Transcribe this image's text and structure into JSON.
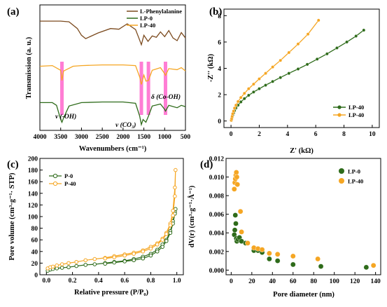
{
  "figure": {
    "panels": [
      "(a)",
      "(b)",
      "(c)",
      "(d)"
    ],
    "colors": {
      "brown": "#7b4a1e",
      "orange": "#f5a623",
      "green": "#2e6b1a",
      "pink": "#ff66cc"
    }
  },
  "chart_data": [
    {
      "panel": "(a)",
      "type": "line",
      "xlabel": "Wavenumbers (cm⁻¹)",
      "ylabel": "Transmission (a. u.)",
      "xlim": [
        4000,
        500
      ],
      "xticks": [
        "4000",
        "3500",
        "3000",
        "2500",
        "2000",
        "1500",
        "1000",
        "500"
      ],
      "legend": [
        "L-Phenylalanine",
        "LP-0",
        "LP-40"
      ],
      "annotations": [
        "ν (-OH)",
        "ν (CO₃)",
        "δ (Co-OH)"
      ],
      "highlight_bands": [
        3470,
        1560,
        1390,
        980
      ],
      "series": [
        {
          "name": "L-Phenylalanine",
          "color": "#7b4a1e",
          "offset": 2.0,
          "x": [
            4000,
            3500,
            3300,
            3100,
            3000,
            2900,
            2600,
            2300,
            2100,
            1900,
            1700,
            1620,
            1560,
            1500,
            1400,
            1300,
            1200,
            1100,
            1000,
            900,
            800,
            700,
            600,
            500
          ],
          "y": [
            0.8,
            0.8,
            0.78,
            0.58,
            0.38,
            0.28,
            0.45,
            0.58,
            0.56,
            0.72,
            0.55,
            0.3,
            0.1,
            0.38,
            0.2,
            0.36,
            0.32,
            0.48,
            0.34,
            0.52,
            0.3,
            0.22,
            0.46,
            0.3
          ]
        },
        {
          "name": "LP-40",
          "color": "#f5a623",
          "offset": 1.0,
          "x": [
            4000,
            3700,
            3500,
            3470,
            3430,
            3200,
            3000,
            2500,
            2000,
            1700,
            1600,
            1560,
            1500,
            1450,
            1390,
            1300,
            1100,
            1000,
            980,
            900,
            700,
            600,
            500
          ],
          "y": [
            0.62,
            0.64,
            0.5,
            0.2,
            0.48,
            0.62,
            0.64,
            0.66,
            0.66,
            0.64,
            0.3,
            0.08,
            0.36,
            0.18,
            0.2,
            0.5,
            0.58,
            0.4,
            0.35,
            0.55,
            0.52,
            0.58,
            0.48
          ]
        },
        {
          "name": "LP-0",
          "color": "#2e6b1a",
          "offset": 0.0,
          "x": [
            4000,
            3700,
            3600,
            3500,
            3470,
            3430,
            3300,
            3000,
            2500,
            2000,
            1700,
            1600,
            1560,
            1520,
            1450,
            1390,
            1300,
            1100,
            1000,
            980,
            900,
            700,
            600,
            500
          ],
          "y": [
            0.7,
            0.7,
            0.62,
            0.2,
            0.12,
            0.25,
            0.6,
            0.7,
            0.72,
            0.72,
            0.68,
            0.3,
            0.05,
            0.2,
            0.12,
            0.3,
            0.6,
            0.66,
            0.5,
            0.45,
            0.62,
            0.55,
            0.62,
            0.58
          ]
        }
      ]
    },
    {
      "panel": "(b)",
      "type": "line",
      "xlabel": "Z' (kΩ)",
      "ylabel": "-Z'' (kΩ)",
      "xlim": [
        -0.5,
        10.5
      ],
      "ylim": [
        -0.5,
        8.5
      ],
      "xticks": [
        0,
        2,
        4,
        6,
        8,
        10
      ],
      "yticks": [
        0,
        2,
        4,
        6,
        8
      ],
      "series": [
        {
          "name": "LP-40",
          "color": "#2e6b1a",
          "x": [
            0.02,
            0.05,
            0.08,
            0.12,
            0.18,
            0.25,
            0.35,
            0.5,
            0.7,
            0.95,
            1.25,
            1.6,
            2.0,
            2.45,
            2.95,
            3.5,
            4.1,
            4.75,
            5.4,
            6.1,
            6.8,
            7.5,
            8.2,
            8.85,
            9.4
          ],
          "y": [
            0.05,
            0.15,
            0.3,
            0.45,
            0.6,
            0.78,
            0.98,
            1.2,
            1.45,
            1.7,
            1.95,
            2.2,
            2.45,
            2.72,
            3.0,
            3.3,
            3.62,
            3.95,
            4.3,
            4.7,
            5.1,
            5.55,
            6.0,
            6.45,
            6.9
          ]
        },
        {
          "name": "LP-40",
          "color": "#f5a623",
          "x": [
            0.02,
            0.05,
            0.08,
            0.12,
            0.18,
            0.25,
            0.35,
            0.5,
            0.7,
            0.95,
            1.25,
            1.6,
            2.0,
            2.45,
            2.95,
            3.5,
            4.1,
            4.75,
            5.45,
            6.2
          ],
          "y": [
            0.05,
            0.18,
            0.35,
            0.55,
            0.75,
            0.98,
            1.2,
            1.48,
            1.78,
            2.1,
            2.45,
            2.8,
            3.2,
            3.62,
            4.1,
            4.6,
            5.2,
            5.85,
            6.6,
            7.65
          ]
        }
      ]
    },
    {
      "panel": "(c)",
      "type": "line",
      "xlabel": "Relative pressure (P/P₀)",
      "ylabel": "Pore volume (cm³·g⁻¹· STP)",
      "xlim": [
        -0.05,
        1.05
      ],
      "ylim": [
        0,
        200
      ],
      "xticks": [
        "0.0",
        "0.2",
        "0.4",
        "0.6",
        "0.8",
        "1.0"
      ],
      "yticks": [
        0,
        20,
        40,
        60,
        80,
        100,
        120,
        140,
        160,
        180,
        200
      ],
      "series": [
        {
          "name": "P-0",
          "color": "#2e6b1a",
          "x": [
            0.01,
            0.03,
            0.05,
            0.08,
            0.12,
            0.17,
            0.23,
            0.3,
            0.37,
            0.45,
            0.52,
            0.6,
            0.67,
            0.74,
            0.8,
            0.85,
            0.89,
            0.92,
            0.95,
            0.97,
            0.985,
            0.99,
            0.985,
            0.97,
            0.95,
            0.92,
            0.89,
            0.85,
            0.8,
            0.74,
            0.67,
            0.6,
            0.52,
            0.45
          ],
          "y": [
            7,
            9,
            10,
            11,
            12,
            13,
            15,
            17,
            18,
            20,
            22,
            24,
            27,
            31,
            36,
            43,
            52,
            60,
            75,
            92,
            108,
            113,
            105,
            88,
            72,
            58,
            48,
            40,
            33,
            28,
            25,
            23,
            21,
            19
          ]
        },
        {
          "name": "P-40",
          "color": "#f5a623",
          "x": [
            0.01,
            0.03,
            0.05,
            0.08,
            0.12,
            0.17,
            0.23,
            0.3,
            0.37,
            0.45,
            0.52,
            0.6,
            0.67,
            0.74,
            0.8,
            0.85,
            0.89,
            0.92,
            0.95,
            0.97,
            0.985,
            0.99,
            0.985,
            0.97,
            0.95,
            0.92,
            0.89,
            0.85,
            0.8,
            0.74,
            0.67,
            0.6,
            0.52,
            0.45
          ],
          "y": [
            11,
            13,
            14,
            16,
            18,
            20,
            22,
            25,
            27,
            29,
            32,
            35,
            38,
            42,
            48,
            54,
            62,
            72,
            88,
            110,
            150,
            180,
            135,
            102,
            85,
            70,
            60,
            52,
            45,
            40,
            36,
            33,
            30,
            28
          ]
        }
      ]
    },
    {
      "panel": "(d)",
      "type": "scatter",
      "xlabel": "Pore diameter (nm)",
      "ylabel": "dV(r) (cm³·g⁻¹·Å⁻¹)",
      "xlim": [
        -5,
        145
      ],
      "ylim": [
        -0.0005,
        0.012
      ],
      "xticks": [
        0,
        20,
        40,
        60,
        80,
        100,
        120,
        140
      ],
      "yticks": [
        "0.000",
        "0.002",
        "0.004",
        "0.006",
        "0.008",
        "0.010",
        "0.012"
      ],
      "series": [
        {
          "name": "LP-0",
          "color": "#2e6b1a",
          "x": [
            3.0,
            3.5,
            4.0,
            4.5,
            5.0,
            5.5,
            6.5,
            8.0,
            10.0,
            14.0,
            22.0,
            26.0,
            30.0,
            37.0,
            45.0,
            60.0,
            87.0,
            131.0
          ],
          "y": [
            0.0038,
            0.0043,
            0.0059,
            0.005,
            0.0034,
            0.0031,
            0.0033,
            0.0035,
            0.0031,
            0.0029,
            0.0021,
            0.0021,
            0.0019,
            0.0012,
            0.001,
            0.0006,
            0.0004,
            0.0003
          ]
        },
        {
          "name": "LP-40",
          "color": "#f5a623",
          "x": [
            3.0,
            3.5,
            4.0,
            4.5,
            5.0,
            5.5,
            6.0,
            9.0,
            10.0,
            16.0,
            22.0,
            26.0,
            30.0,
            37.0,
            45.0,
            60.0,
            84.0,
            138.0
          ],
          "y": [
            0.0087,
            0.0094,
            0.0098,
            0.0102,
            0.0105,
            0.01,
            0.0092,
            0.0063,
            0.0041,
            0.0029,
            0.0024,
            0.0023,
            0.0022,
            0.0018,
            0.0017,
            0.0015,
            0.0012,
            0.0005
          ]
        }
      ]
    }
  ]
}
